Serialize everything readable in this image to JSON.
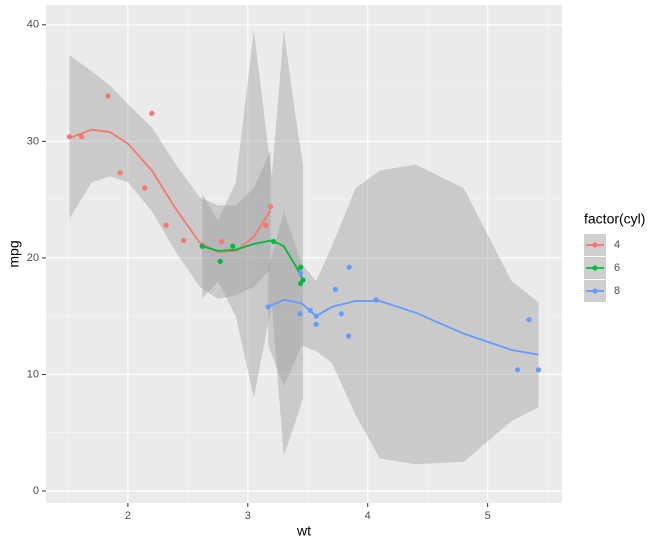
{
  "chart_data": {
    "type": "scatter",
    "xlabel": "wt",
    "ylabel": "mpg",
    "legend_title": "factor(cyl)",
    "xlim": [
      1.317,
      5.62
    ],
    "ylim": [
      -1.03,
      41.7
    ],
    "xticks": [
      2,
      3,
      4,
      5
    ],
    "yticks": [
      0,
      10,
      20,
      30,
      40
    ],
    "grid": true,
    "series": [
      {
        "name": "4",
        "color": "#F8766D",
        "x": [
          2.32,
          3.19,
          3.15,
          2.2,
          1.615,
          1.835,
          2.465,
          1.935,
          2.14,
          1.513,
          2.78
        ],
        "values": [
          22.8,
          24.4,
          22.8,
          32.4,
          30.4,
          33.9,
          21.5,
          27.3,
          26.0,
          30.4,
          21.4
        ],
        "smooth_x": [
          1.513,
          1.7,
          1.85,
          2.0,
          2.2,
          2.4,
          2.6,
          2.75,
          2.9,
          3.05,
          3.19
        ],
        "smooth_y": [
          30.3,
          31.0,
          30.8,
          29.8,
          27.5,
          24.2,
          21.3,
          20.5,
          20.6,
          21.8,
          24.1
        ],
        "ribbon_low": [
          23.4,
          26.5,
          27.0,
          26.5,
          24.0,
          20.5,
          17.5,
          16.5,
          16.8,
          17.5,
          19.0
        ],
        "ribbon_high": [
          37.4,
          36.0,
          34.8,
          33.2,
          31.2,
          28.0,
          25.2,
          24.5,
          24.5,
          26.0,
          29.2
        ]
      },
      {
        "name": "6",
        "color": "#00BA38",
        "x": [
          2.62,
          2.875,
          3.215,
          3.46,
          3.44,
          3.44,
          2.77
        ],
        "values": [
          21.0,
          21.0,
          21.4,
          18.1,
          19.2,
          17.8,
          19.7
        ],
        "smooth_x": [
          2.62,
          2.75,
          2.9,
          3.05,
          3.2,
          3.3,
          3.4,
          3.46
        ],
        "smooth_y": [
          21.0,
          20.6,
          20.7,
          21.2,
          21.5,
          21.0,
          19.3,
          18.1
        ],
        "ribbon_low": [
          16.5,
          18.0,
          15.0,
          8.0,
          16.0,
          3.0,
          6.0,
          8.0
        ],
        "ribbon_high": [
          25.5,
          23.2,
          26.5,
          39.5,
          27.0,
          39.5,
          32.0,
          28.0
        ]
      },
      {
        "name": "8",
        "color": "#619CFF",
        "x": [
          3.44,
          3.57,
          4.07,
          3.73,
          3.78,
          5.25,
          5.424,
          5.345,
          3.52,
          3.435,
          3.84,
          3.845,
          3.17,
          3.57
        ],
        "values": [
          18.7,
          14.3,
          16.4,
          17.3,
          15.2,
          10.4,
          10.4,
          14.7,
          15.5,
          15.2,
          13.3,
          19.2,
          15.8,
          15.0
        ],
        "smooth_x": [
          3.17,
          3.3,
          3.45,
          3.57,
          3.7,
          3.9,
          4.1,
          4.4,
          4.8,
          5.2,
          5.424
        ],
        "smooth_y": [
          15.8,
          16.4,
          16.1,
          15.0,
          15.8,
          16.3,
          16.3,
          15.3,
          13.5,
          12.1,
          11.7
        ],
        "ribbon_low": [
          12.5,
          9.0,
          12.5,
          12.0,
          11.0,
          6.5,
          2.8,
          2.3,
          2.5,
          6.0,
          7.2
        ],
        "ribbon_high": [
          19.0,
          24.0,
          19.5,
          18.0,
          21.0,
          26.0,
          27.5,
          28.0,
          26.0,
          18.0,
          16.2
        ]
      }
    ]
  }
}
